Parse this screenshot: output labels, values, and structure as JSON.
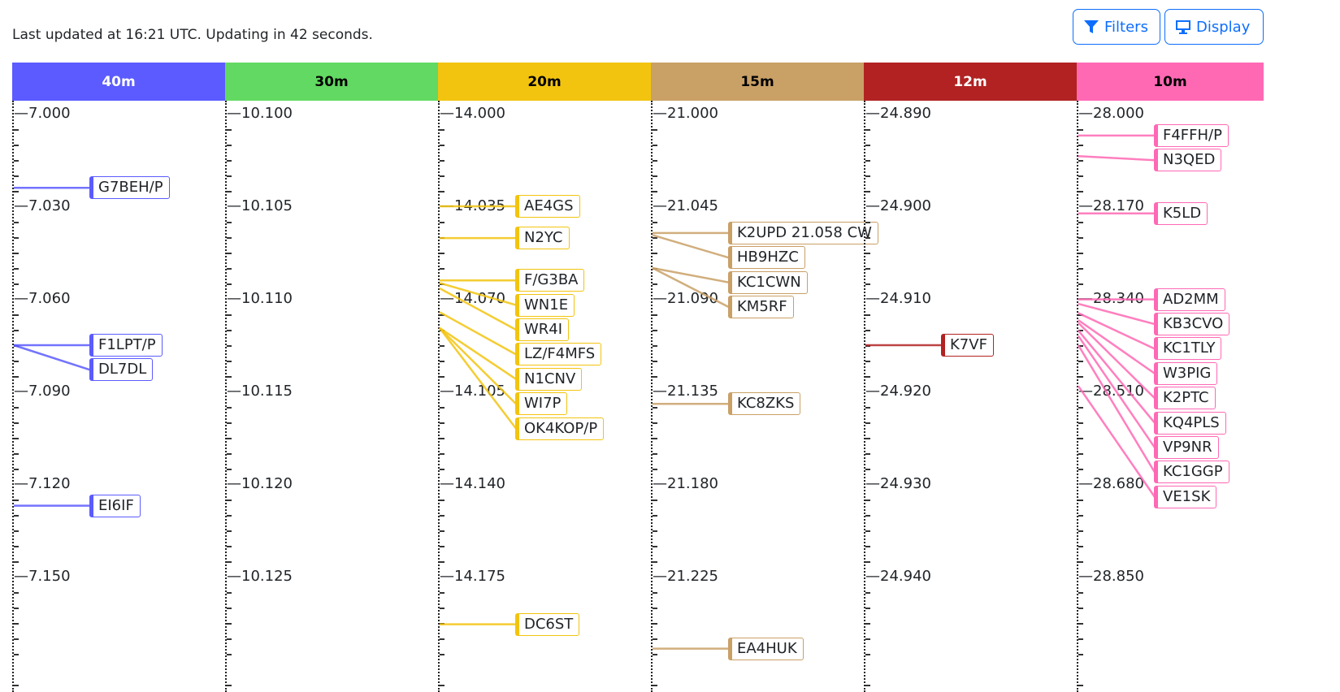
{
  "status": "Last updated at 16:21 UTC. Updating in 42 seconds.",
  "buttons": {
    "filters": "Filters",
    "display": "Display"
  },
  "icons": {
    "filters": "funnel-icon",
    "display": "monitor-icon"
  },
  "accent_color": "#0d6efd",
  "bands": [
    {
      "name": "40m",
      "color": "#5b5bff",
      "text_color": "#ffffff",
      "ticks": [
        "7.000",
        "7.030",
        "7.060",
        "7.090",
        "7.120",
        "7.150"
      ],
      "spots": [
        {
          "call": "G7BEH/P",
          "freq": 7.024
        },
        {
          "call": "F1LPT/P",
          "freq": 7.075
        },
        {
          "call": "DL7DL",
          "freq": 7.075
        },
        {
          "call": "EI6IF",
          "freq": 7.127
        }
      ]
    },
    {
      "name": "30m",
      "color": "#62d962",
      "text_color": "#000000",
      "ticks": [
        "10.100",
        "10.105",
        "10.110",
        "10.115",
        "10.120",
        "10.125"
      ],
      "spots": []
    },
    {
      "name": "20m",
      "color": "#f2c40f",
      "text_color": "#000000",
      "ticks": [
        "14.000",
        "14.035",
        "14.070",
        "14.105",
        "14.140",
        "14.175"
      ],
      "spots": [
        {
          "call": "AE4GS",
          "freq": 14.035
        },
        {
          "call": "N2YC",
          "freq": 14.047
        },
        {
          "call": "F/G3BA",
          "freq": 14.063
        },
        {
          "call": "WN1E",
          "freq": 14.064
        },
        {
          "call": "WR4I",
          "freq": 14.066
        },
        {
          "call": "LZ/F4MFS",
          "freq": 14.075
        },
        {
          "call": "N1CNV",
          "freq": 14.081
        },
        {
          "call": "WI7P",
          "freq": 14.081
        },
        {
          "call": "OK4KOP/P",
          "freq": 14.081
        },
        {
          "call": "DC6ST",
          "freq": 14.193
        }
      ]
    },
    {
      "name": "15m",
      "color": "#c9a066",
      "text_color": "#000000",
      "ticks": [
        "21.000",
        "21.045",
        "21.090",
        "21.135",
        "21.180",
        "21.225"
      ],
      "spots": [
        {
          "call": "K2UPD 21.058 CW",
          "freq": 21.058
        },
        {
          "call": "HB9HZC",
          "freq": 21.059
        },
        {
          "call": "KC1CWN",
          "freq": 21.075
        },
        {
          "call": "KM5RF",
          "freq": 21.075
        },
        {
          "call": "KC8ZKS",
          "freq": 21.141
        },
        {
          "call": "EA4HUK",
          "freq": 21.26
        }
      ]
    },
    {
      "name": "12m",
      "color": "#b22222",
      "text_color": "#ffffff",
      "ticks": [
        "24.890",
        "24.900",
        "24.910",
        "24.920",
        "24.930",
        "24.940"
      ],
      "spots": [
        {
          "call": "K7VF",
          "freq": 24.915
        }
      ]
    },
    {
      "name": "10m",
      "color": "#ff69b4",
      "text_color": "#000000",
      "ticks": [
        "28.000",
        "28.170",
        "28.340",
        "28.510",
        "28.680",
        "28.850"
      ],
      "spots": [
        {
          "call": "F4FFH/P",
          "freq": 28.04
        },
        {
          "call": "N3QED",
          "freq": 28.078
        },
        {
          "call": "K5LD",
          "freq": 28.183
        },
        {
          "call": "AD2MM",
          "freq": 28.341
        },
        {
          "call": "KB3CVO",
          "freq": 28.349
        },
        {
          "call": "KC1TLY",
          "freq": 28.366
        },
        {
          "call": "W3PIG",
          "freq": 28.379
        },
        {
          "call": "K2PTC",
          "freq": 28.384
        },
        {
          "call": "KQ4PLS",
          "freq": 28.398
        },
        {
          "call": "VP9NR",
          "freq": 28.408
        },
        {
          "call": "KC1GGP",
          "freq": 28.425
        },
        {
          "call": "VE1SK",
          "freq": 28.5
        }
      ]
    }
  ]
}
